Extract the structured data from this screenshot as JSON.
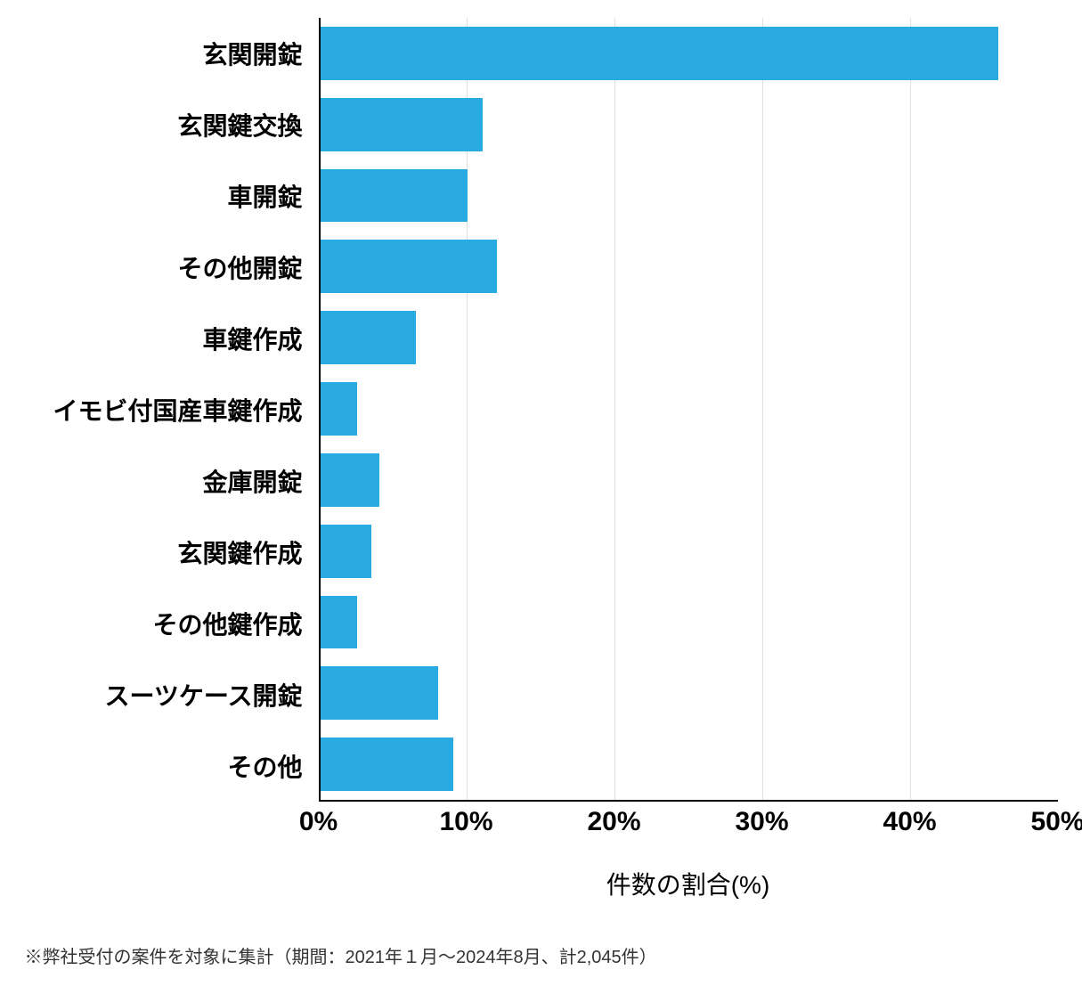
{
  "chart": {
    "type": "bar-horizontal",
    "bar_color": "#29abe2",
    "background_color": "#ffffff",
    "grid_color": "#e0e0e0",
    "axis_color": "#000000",
    "font_family": "Hiragino Sans",
    "label_fontsize": 28,
    "label_fontweight": 600,
    "tick_fontsize": 30,
    "tick_fontweight": 700,
    "categories": [
      "玄関開錠",
      "玄関鍵交換",
      "車開錠",
      "その他開錠",
      "車鍵作成",
      "イモビ付国産車鍵作成",
      "金庫開錠",
      "玄関鍵作成",
      "その他鍵作成",
      "スーツケース開錠",
      "その他"
    ],
    "values": [
      46,
      11,
      10,
      12,
      6.5,
      2.5,
      4,
      3.5,
      2.5,
      8,
      9
    ],
    "x": {
      "min": 0,
      "max": 50,
      "tick_step": 10,
      "tick_labels": [
        "0%",
        "10%",
        "20%",
        "30%",
        "40%",
        "50%"
      ],
      "title": "件数の割合(%)",
      "title_fontsize": 28
    },
    "bar_fill_ratio": 0.74
  },
  "footnote": "※弊社受付の案件を対象に集計（期間：2021年１月〜2024年8月、計2,045件）",
  "footnote_fontsize": 20,
  "footnote_color": "#333333"
}
